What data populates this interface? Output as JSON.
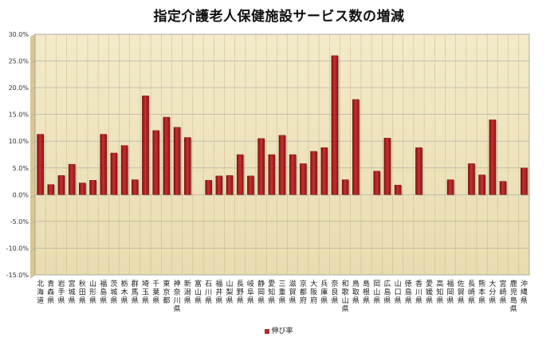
{
  "chart_data": {
    "type": "bar",
    "title": "指定介護老人保健施設サービス数の増減",
    "ylim": [
      -15.0,
      30.0
    ],
    "yticks": [
      "30.0%",
      "25.0%",
      "20.0%",
      "15.0%",
      "10.0%",
      "5.0%",
      "0.0%",
      "-5.0%",
      "-10.0%",
      "-15.0%"
    ],
    "ytick_values": [
      30,
      25,
      20,
      15,
      10,
      5,
      0,
      -5,
      -10,
      -15
    ],
    "grid": true,
    "legend_position": "bottom",
    "categories": [
      "北海道",
      "青森県",
      "岩手県",
      "宮城県",
      "秋田県",
      "山形県",
      "福島県",
      "茨城県",
      "栃木県",
      "群馬県",
      "埼玉県",
      "千葉県",
      "東京都",
      "神奈川県",
      "新潟県",
      "富山県",
      "石川県",
      "福井県",
      "山梨県",
      "長野県",
      "岐阜県",
      "静岡県",
      "愛知県",
      "三重県",
      "滋賀県",
      "京都府",
      "大阪府",
      "兵庫県",
      "奈良県",
      "和歌山県",
      "鳥取県",
      "島根県",
      "岡山県",
      "広島県",
      "山口県",
      "徳島県",
      "香川県",
      "愛媛県",
      "高知県",
      "福岡県",
      "佐賀県",
      "長崎県",
      "熊本県",
      "大分県",
      "宮崎県",
      "鹿児島県",
      "沖縄県"
    ],
    "series": [
      {
        "name": "伸び率",
        "color": "#b22a2a",
        "values": [
          11.3,
          1.9,
          3.6,
          5.7,
          2.2,
          2.7,
          11.3,
          7.8,
          9.2,
          2.8,
          18.5,
          12.0,
          14.5,
          12.6,
          10.7,
          0.0,
          2.7,
          3.5,
          3.6,
          7.5,
          3.5,
          10.5,
          7.5,
          11.1,
          7.5,
          5.8,
          8.1,
          8.8,
          26.0,
          2.8,
          17.8,
          0.0,
          4.4,
          10.6,
          1.8,
          0.0,
          8.8,
          0.0,
          0.0,
          2.8,
          0.0,
          5.8,
          3.7,
          14.0,
          2.5,
          0.0,
          5.0
        ]
      }
    ]
  }
}
